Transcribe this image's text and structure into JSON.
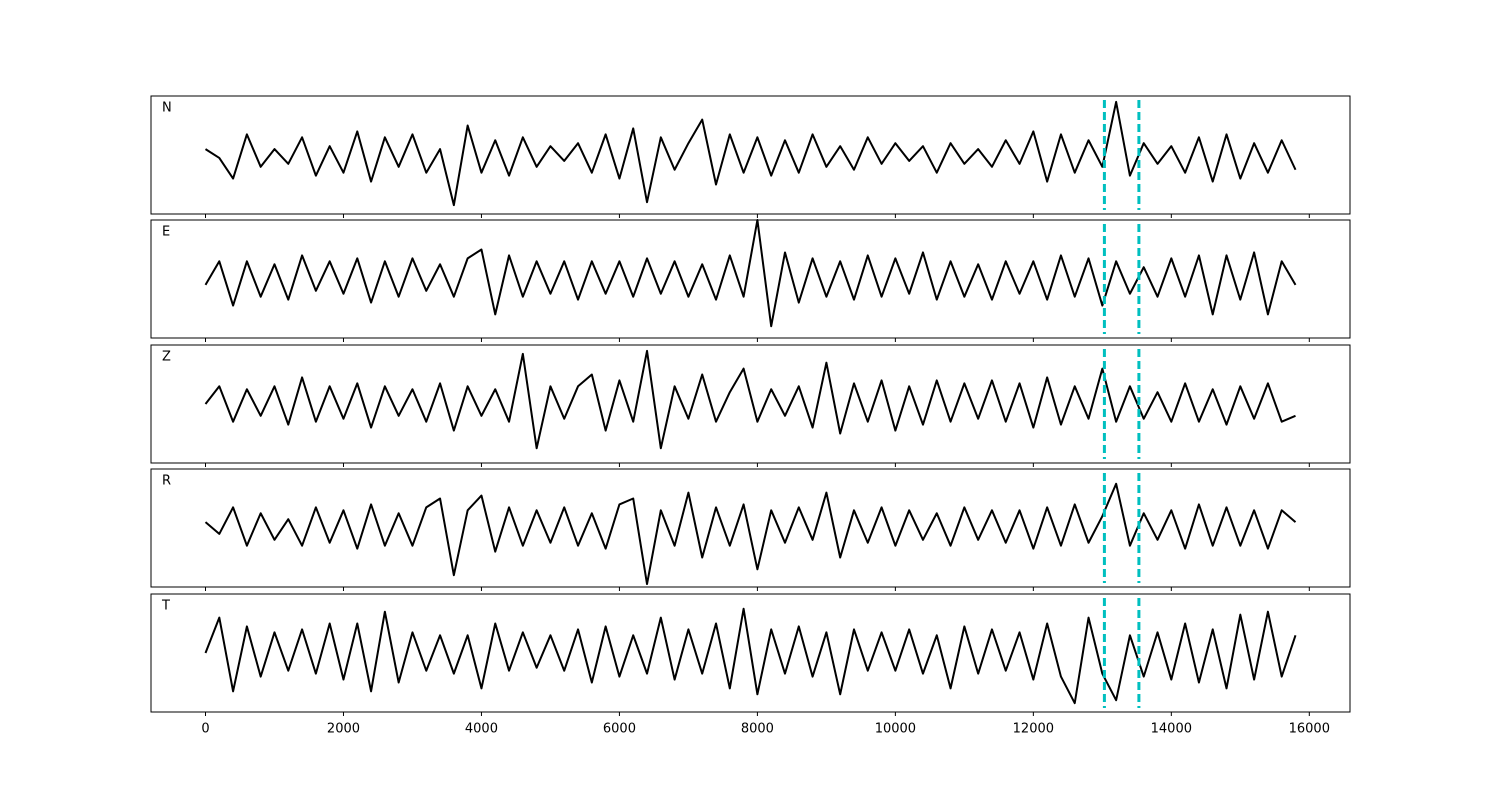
{
  "chart_data": [
    {
      "type": "line",
      "label": "N",
      "color": "#000000",
      "vline_color": "#00bfbf",
      "x": [
        0,
        200,
        400,
        600,
        800,
        1000,
        1200,
        1400,
        1600,
        1800,
        2000,
        2200,
        2400,
        2600,
        2800,
        3000,
        3200,
        3400,
        3600,
        3800,
        4000,
        4200,
        4400,
        4600,
        4800,
        5000,
        5200,
        5400,
        5600,
        5800,
        6000,
        6200,
        6400,
        6600,
        6800,
        7000,
        7200,
        7400,
        7600,
        7800,
        8000,
        8200,
        8400,
        8600,
        8800,
        9000,
        9200,
        9400,
        9600,
        9800,
        10000,
        10200,
        10400,
        10600,
        10800,
        11000,
        11200,
        11400,
        11600,
        11800,
        12000,
        12200,
        12400,
        12600,
        12800,
        13000,
        13200,
        13400,
        13600,
        13800,
        14000,
        14200,
        14400,
        14600,
        14800,
        15000,
        15200,
        15400,
        15600,
        15800
      ],
      "values": [
        0.1,
        -0.05,
        -0.4,
        0.35,
        -0.2,
        0.1,
        -0.15,
        0.3,
        -0.35,
        0.15,
        -0.3,
        0.4,
        -0.45,
        0.3,
        -0.2,
        0.35,
        -0.3,
        0.1,
        -0.85,
        0.5,
        -0.3,
        0.25,
        -0.35,
        0.3,
        -0.2,
        0.15,
        -0.1,
        0.2,
        -0.3,
        0.35,
        -0.4,
        0.45,
        -0.8,
        0.3,
        -0.25,
        0.2,
        0.6,
        -0.5,
        0.35,
        -0.3,
        0.3,
        -0.35,
        0.25,
        -0.3,
        0.35,
        -0.2,
        0.15,
        -0.25,
        0.3,
        -0.15,
        0.2,
        -0.1,
        0.15,
        -0.3,
        0.2,
        -0.15,
        0.1,
        -0.2,
        0.25,
        -0.15,
        0.4,
        -0.45,
        0.35,
        -0.3,
        0.25,
        -0.2,
        0.9,
        -0.35,
        0.2,
        -0.15,
        0.15,
        -0.3,
        0.3,
        -0.45,
        0.35,
        -0.4,
        0.2,
        -0.3,
        0.25,
        -0.25
      ],
      "xlim": [
        -790,
        16590
      ],
      "ylim": [
        -1,
        1
      ],
      "xticks": [
        0,
        2000,
        4000,
        6000,
        8000,
        10000,
        12000,
        14000,
        16000
      ],
      "vlines": [
        13030,
        13530
      ]
    },
    {
      "type": "line",
      "label": "E",
      "color": "#000000",
      "vline_color": "#00bfbf",
      "x": [
        0,
        200,
        400,
        600,
        800,
        1000,
        1200,
        1400,
        1600,
        1800,
        2000,
        2200,
        2400,
        2600,
        2800,
        3000,
        3200,
        3400,
        3600,
        3800,
        4000,
        4200,
        4400,
        4600,
        4800,
        5000,
        5200,
        5400,
        5600,
        5800,
        6000,
        6200,
        6400,
        6600,
        6800,
        7000,
        7200,
        7400,
        7600,
        7800,
        8000,
        8200,
        8400,
        8600,
        8800,
        9000,
        9200,
        9400,
        9600,
        9800,
        10000,
        10200,
        10400,
        10600,
        10800,
        11000,
        11200,
        11400,
        11600,
        11800,
        12000,
        12200,
        12400,
        12600,
        12800,
        13000,
        13200,
        13400,
        13600,
        13800,
        14000,
        14200,
        14400,
        14600,
        14800,
        15000,
        15200,
        15400,
        15600,
        15800
      ],
      "values": [
        -0.1,
        0.3,
        -0.45,
        0.3,
        -0.3,
        0.25,
        -0.35,
        0.4,
        -0.2,
        0.3,
        -0.25,
        0.35,
        -0.4,
        0.3,
        -0.3,
        0.35,
        -0.2,
        0.25,
        -0.3,
        0.35,
        0.5,
        -0.6,
        0.4,
        -0.3,
        0.3,
        -0.25,
        0.3,
        -0.35,
        0.3,
        -0.25,
        0.3,
        -0.3,
        0.35,
        -0.25,
        0.3,
        -0.3,
        0.25,
        -0.35,
        0.4,
        -0.3,
        1.0,
        -0.8,
        0.45,
        -0.4,
        0.35,
        -0.3,
        0.3,
        -0.35,
        0.4,
        -0.3,
        0.35,
        -0.25,
        0.45,
        -0.35,
        0.3,
        -0.3,
        0.25,
        -0.35,
        0.3,
        -0.25,
        0.3,
        -0.35,
        0.4,
        -0.3,
        0.35,
        -0.45,
        0.3,
        -0.25,
        0.2,
        -0.3,
        0.35,
        -0.3,
        0.4,
        -0.6,
        0.4,
        -0.35,
        0.45,
        -0.6,
        0.3,
        -0.1
      ],
      "xlim": [
        -790,
        16590
      ],
      "ylim": [
        -1,
        1
      ],
      "xticks": [
        0,
        2000,
        4000,
        6000,
        8000,
        10000,
        12000,
        14000,
        16000
      ],
      "vlines": [
        13030,
        13530
      ]
    },
    {
      "type": "line",
      "label": "Z",
      "color": "#000000",
      "vline_color": "#00bfbf",
      "x": [
        0,
        200,
        400,
        600,
        800,
        1000,
        1200,
        1400,
        1600,
        1800,
        2000,
        2200,
        2400,
        2600,
        2800,
        3000,
        3200,
        3400,
        3600,
        3800,
        4000,
        4200,
        4400,
        4600,
        4800,
        5000,
        5200,
        5400,
        5600,
        5800,
        6000,
        6200,
        6400,
        6600,
        6800,
        7000,
        7200,
        7400,
        7600,
        7800,
        8000,
        8200,
        8400,
        8600,
        8800,
        9000,
        9200,
        9400,
        9600,
        9800,
        10000,
        10200,
        10400,
        10600,
        10800,
        11000,
        11200,
        11400,
        11600,
        11800,
        12000,
        12200,
        12400,
        12600,
        12800,
        13000,
        13200,
        13400,
        13600,
        13800,
        14000,
        14200,
        14400,
        14600,
        14800,
        15000,
        15200,
        15400,
        15600,
        15800
      ],
      "values": [
        0.0,
        0.3,
        -0.3,
        0.25,
        -0.2,
        0.3,
        -0.35,
        0.45,
        -0.3,
        0.3,
        -0.25,
        0.35,
        -0.4,
        0.3,
        -0.2,
        0.25,
        -0.3,
        0.35,
        -0.45,
        0.3,
        -0.2,
        0.25,
        -0.3,
        0.85,
        -0.75,
        0.3,
        -0.25,
        0.3,
        0.5,
        -0.45,
        0.4,
        -0.3,
        0.9,
        -0.75,
        0.3,
        -0.25,
        0.5,
        -0.3,
        0.2,
        0.6,
        -0.3,
        0.25,
        -0.2,
        0.3,
        -0.4,
        0.7,
        -0.5,
        0.35,
        -0.3,
        0.4,
        -0.45,
        0.3,
        -0.35,
        0.4,
        -0.3,
        0.35,
        -0.25,
        0.4,
        -0.3,
        0.35,
        -0.4,
        0.45,
        -0.35,
        0.3,
        -0.25,
        0.6,
        -0.3,
        0.3,
        -0.25,
        0.2,
        -0.3,
        0.35,
        -0.3,
        0.25,
        -0.35,
        0.3,
        -0.25,
        0.35,
        -0.3,
        -0.2
      ],
      "xlim": [
        -790,
        16590
      ],
      "ylim": [
        -1,
        1
      ],
      "xticks": [
        0,
        2000,
        4000,
        6000,
        8000,
        10000,
        12000,
        14000,
        16000
      ],
      "vlines": [
        13030,
        13530
      ]
    },
    {
      "type": "line",
      "label": "R",
      "color": "#000000",
      "vline_color": "#00bfbf",
      "x": [
        0,
        200,
        400,
        600,
        800,
        1000,
        1200,
        1400,
        1600,
        1800,
        2000,
        2200,
        2400,
        2600,
        2800,
        3000,
        3200,
        3400,
        3600,
        3800,
        4000,
        4200,
        4400,
        4600,
        4800,
        5000,
        5200,
        5400,
        5600,
        5800,
        6000,
        6200,
        6400,
        6600,
        6800,
        7000,
        7200,
        7400,
        7600,
        7800,
        8000,
        8200,
        8400,
        8600,
        8800,
        9000,
        9200,
        9400,
        9600,
        9800,
        10000,
        10200,
        10400,
        10600,
        10800,
        11000,
        11200,
        11400,
        11600,
        11800,
        12000,
        12200,
        12400,
        12600,
        12800,
        13000,
        13200,
        13400,
        13600,
        13800,
        14000,
        14200,
        14400,
        14600,
        14800,
        15000,
        15200,
        15400,
        15600,
        15800
      ],
      "values": [
        0.1,
        -0.1,
        0.35,
        -0.3,
        0.25,
        -0.2,
        0.15,
        -0.3,
        0.35,
        -0.25,
        0.3,
        -0.35,
        0.4,
        -0.3,
        0.25,
        -0.3,
        0.35,
        0.5,
        -0.8,
        0.3,
        0.55,
        -0.4,
        0.35,
        -0.3,
        0.3,
        -0.25,
        0.35,
        -0.3,
        0.25,
        -0.35,
        0.4,
        0.5,
        -0.95,
        0.3,
        -0.3,
        0.6,
        -0.5,
        0.35,
        -0.3,
        0.4,
        -0.7,
        0.3,
        -0.25,
        0.35,
        -0.2,
        0.6,
        -0.5,
        0.3,
        -0.25,
        0.35,
        -0.3,
        0.3,
        -0.2,
        0.25,
        -0.3,
        0.35,
        -0.2,
        0.3,
        -0.25,
        0.3,
        -0.35,
        0.35,
        -0.3,
        0.4,
        -0.25,
        0.2,
        0.75,
        -0.3,
        0.25,
        -0.2,
        0.3,
        -0.35,
        0.4,
        -0.3,
        0.35,
        -0.3,
        0.3,
        -0.35,
        0.3,
        0.1
      ],
      "xlim": [
        -790,
        16590
      ],
      "ylim": [
        -1,
        1
      ],
      "xticks": [
        0,
        2000,
        4000,
        6000,
        8000,
        10000,
        12000,
        14000,
        16000
      ],
      "vlines": [
        13030,
        13530
      ]
    },
    {
      "type": "line",
      "label": "T",
      "color": "#000000",
      "vline_color": "#00bfbf",
      "x": [
        0,
        200,
        400,
        600,
        800,
        1000,
        1200,
        1400,
        1600,
        1800,
        2000,
        2200,
        2400,
        2600,
        2800,
        3000,
        3200,
        3400,
        3600,
        3800,
        4000,
        4200,
        4400,
        4600,
        4800,
        5000,
        5200,
        5400,
        5600,
        5800,
        6000,
        6200,
        6400,
        6600,
        6800,
        7000,
        7200,
        7400,
        7600,
        7800,
        8000,
        8200,
        8400,
        8600,
        8800,
        9000,
        9200,
        9400,
        9600,
        9800,
        10000,
        10200,
        10400,
        10600,
        10800,
        11000,
        11200,
        11400,
        11600,
        11800,
        12000,
        12200,
        12400,
        12600,
        12800,
        13000,
        13200,
        13400,
        13600,
        13800,
        14000,
        14200,
        14400,
        14600,
        14800,
        15000,
        15200,
        15400,
        15600,
        15800
      ],
      "values": [
        0.0,
        0.6,
        -0.65,
        0.45,
        -0.4,
        0.35,
        -0.3,
        0.4,
        -0.35,
        0.5,
        -0.45,
        0.5,
        -0.65,
        0.7,
        -0.5,
        0.35,
        -0.3,
        0.3,
        -0.35,
        0.3,
        -0.6,
        0.5,
        -0.3,
        0.35,
        -0.25,
        0.3,
        -0.3,
        0.4,
        -0.5,
        0.45,
        -0.4,
        0.3,
        -0.35,
        0.6,
        -0.45,
        0.4,
        -0.35,
        0.5,
        -0.6,
        0.75,
        -0.7,
        0.4,
        -0.35,
        0.45,
        -0.4,
        0.35,
        -0.7,
        0.4,
        -0.3,
        0.35,
        -0.3,
        0.4,
        -0.35,
        0.3,
        -0.6,
        0.45,
        -0.35,
        0.4,
        -0.3,
        0.35,
        -0.45,
        0.5,
        -0.4,
        -0.85,
        0.6,
        -0.35,
        -0.8,
        0.3,
        -0.4,
        0.35,
        -0.45,
        0.5,
        -0.5,
        0.4,
        -0.6,
        0.65,
        -0.45,
        0.7,
        -0.4,
        0.3
      ],
      "xlim": [
        -790,
        16590
      ],
      "ylim": [
        -1,
        1
      ],
      "xticks": [
        0,
        2000,
        4000,
        6000,
        8000,
        10000,
        12000,
        14000,
        16000
      ],
      "vlines": [
        13030,
        13530
      ]
    }
  ]
}
